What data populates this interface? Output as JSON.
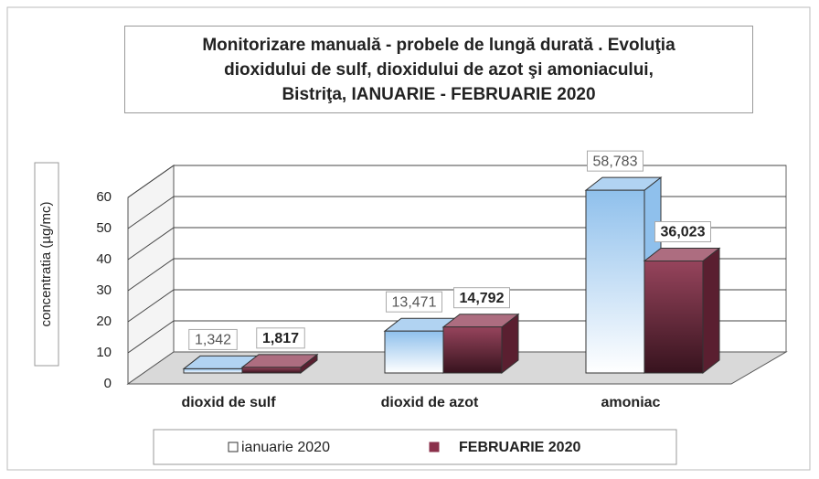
{
  "chart_data": {
    "type": "bar",
    "title": "Monitorizare manuală - probele de lungă durată . Evoluţia\ndioxidului de sulf, dioxidului de azot şi amoniacului,\nBistriţa,  IANUARIE - FEBRUARIE 2020",
    "y_label": "concentratia (µg/mc)",
    "categories": [
      "dioxid de sulf",
      "dioxid de azot",
      "amoniac"
    ],
    "series": [
      {
        "name": "ianuarie 2020",
        "color": "#8fc0ec",
        "values": [
          1.342,
          13.471,
          58.783
        ],
        "value_labels": [
          "1,342",
          "13,471",
          "58,783"
        ]
      },
      {
        "name": "FEBRUARIE 2020",
        "color": "#8a2f4a",
        "values": [
          1.817,
          14.792,
          36.023
        ],
        "value_labels": [
          "1,817",
          "14,792",
          "36,023"
        ]
      }
    ],
    "ylim": [
      0,
      60
    ],
    "yticks": [
      0,
      10,
      20,
      30,
      40,
      50,
      60
    ],
    "grid": true,
    "legend": "bottom"
  }
}
